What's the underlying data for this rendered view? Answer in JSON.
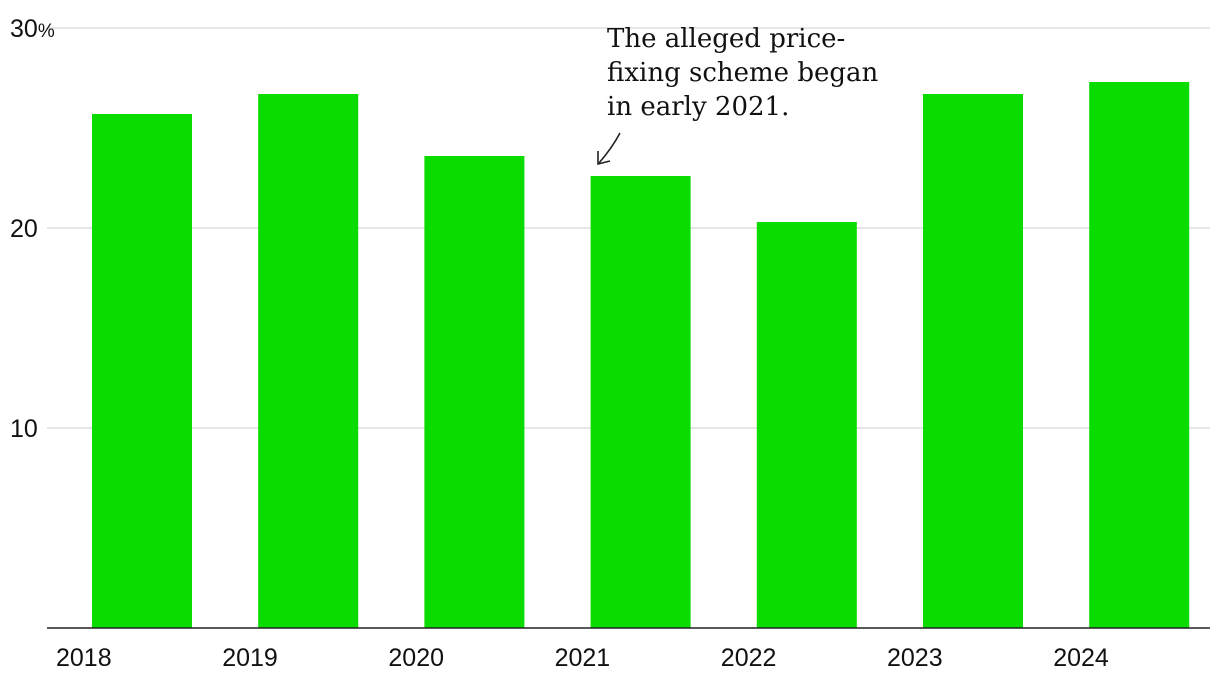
{
  "chart_data": {
    "type": "bar",
    "categories": [
      "2018",
      "2019",
      "2020",
      "2021",
      "2022",
      "2023",
      "2024"
    ],
    "values": [
      25.7,
      26.7,
      23.6,
      22.6,
      20.3,
      26.7,
      27.3
    ],
    "y_unit_suffix": "%",
    "yticks": [
      10,
      20,
      30
    ],
    "ytick_labels": [
      "10",
      "20",
      "30%"
    ],
    "ylim": [
      0,
      30
    ],
    "grid": true,
    "colors": {
      "bar": "#0adc00",
      "grid": "#dddddd",
      "axis": "#222222"
    },
    "annotation": {
      "lines": [
        "The alleged price-",
        "fixing scheme began",
        "in early 2021."
      ],
      "target_category": "2021"
    }
  }
}
